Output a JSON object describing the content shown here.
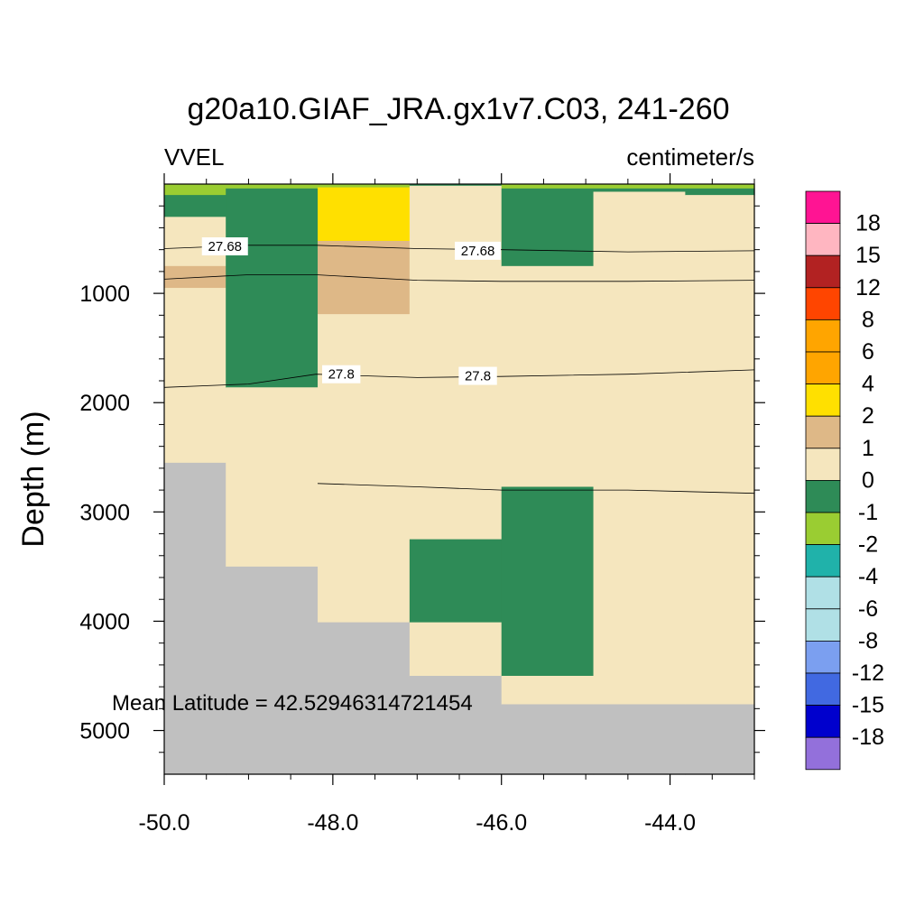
{
  "chart_data": {
    "type": "heatmap",
    "title": "g20a10.GIAF_JRA.gx1v7.C03, 241-260",
    "left_label": "VVEL",
    "right_label": "centimeter/s",
    "ylabel": "Depth (m)",
    "xlabel": "",
    "xlim": [
      -50.0,
      -43.0
    ],
    "ylim": [
      5400,
      0
    ],
    "y_reversed": true,
    "x_ticks": [
      -50.0,
      -48.0,
      -46.0,
      -44.0
    ],
    "x_tick_labels": [
      "-50.0",
      "-48.0",
      "-46.0",
      "-44.0"
    ],
    "y_ticks": [
      1000,
      2000,
      3000,
      4000,
      5000
    ],
    "y_tick_labels": [
      "1000",
      "2000",
      "3000",
      "4000",
      "5000"
    ],
    "annotation": "Mean Latitude = 42.52946314721454",
    "colorbar": {
      "labels": [
        "18",
        "15",
        "12",
        "8",
        "6",
        "4",
        "2",
        "1",
        "0",
        "-1",
        "-2",
        "-4",
        "-6",
        "-8",
        "-12",
        "-15",
        "-18"
      ],
      "colors": [
        "#ff1493",
        "#ffb6c1",
        "#b22222",
        "#ff4500",
        "#ffa500",
        "#ffa500",
        "#ffe000",
        "#deb887",
        "#f5e6be",
        "#2e8b57",
        "#9acd32",
        "#20b2aa",
        "#b0e0e6",
        "#b0e0e6",
        "#7b9ff0",
        "#4169e1",
        "#0000cd",
        "#9370db"
      ]
    },
    "missing_color": "#c0c0c0",
    "cells": [
      {
        "x": [
          -50.0,
          -49.27
        ],
        "y": [
          0,
          100
        ],
        "c": "#9acd32"
      },
      {
        "x": [
          -50.0,
          -49.27
        ],
        "y": [
          100,
          300
        ],
        "c": "#2e8b57"
      },
      {
        "x": [
          -50.0,
          -49.27
        ],
        "y": [
          300,
          750
        ],
        "c": "#f5e6be"
      },
      {
        "x": [
          -50.0,
          -49.27
        ],
        "y": [
          750,
          950
        ],
        "c": "#deb887"
      },
      {
        "x": [
          -50.0,
          -49.27
        ],
        "y": [
          950,
          2550
        ],
        "c": "#f5e6be"
      },
      {
        "x": [
          -50.0,
          -49.27
        ],
        "y": [
          2550,
          5400
        ],
        "c": "#c0c0c0"
      },
      {
        "x": [
          -49.27,
          -48.18
        ],
        "y": [
          0,
          40
        ],
        "c": "#9acd32"
      },
      {
        "x": [
          -49.27,
          -48.18
        ],
        "y": [
          40,
          1860
        ],
        "c": "#2e8b57"
      },
      {
        "x": [
          -49.27,
          -48.18
        ],
        "y": [
          1860,
          3500
        ],
        "c": "#f5e6be"
      },
      {
        "x": [
          -49.27,
          -48.18
        ],
        "y": [
          3500,
          5400
        ],
        "c": "#c0c0c0"
      },
      {
        "x": [
          -48.18,
          -47.09
        ],
        "y": [
          0,
          30
        ],
        "c": "#9acd32"
      },
      {
        "x": [
          -48.18,
          -47.09
        ],
        "y": [
          30,
          520
        ],
        "c": "#ffe000"
      },
      {
        "x": [
          -48.18,
          -47.09
        ],
        "y": [
          520,
          1190
        ],
        "c": "#deb887"
      },
      {
        "x": [
          -48.18,
          -47.09
        ],
        "y": [
          1190,
          4010
        ],
        "c": "#f5e6be"
      },
      {
        "x": [
          -48.18,
          -47.09
        ],
        "y": [
          4010,
          5400
        ],
        "c": "#c0c0c0"
      },
      {
        "x": [
          -47.09,
          -46.0
        ],
        "y": [
          0,
          15
        ],
        "c": "#2e8b57"
      },
      {
        "x": [
          -47.09,
          -46.0
        ],
        "y": [
          15,
          3250
        ],
        "c": "#f5e6be"
      },
      {
        "x": [
          -47.09,
          -46.0
        ],
        "y": [
          3250,
          4010
        ],
        "c": "#2e8b57"
      },
      {
        "x": [
          -47.09,
          -46.0
        ],
        "y": [
          4010,
          4500
        ],
        "c": "#f5e6be"
      },
      {
        "x": [
          -47.09,
          -46.0
        ],
        "y": [
          4500,
          5400
        ],
        "c": "#c0c0c0"
      },
      {
        "x": [
          -46.0,
          -44.91
        ],
        "y": [
          0,
          40
        ],
        "c": "#9acd32"
      },
      {
        "x": [
          -46.0,
          -44.91
        ],
        "y": [
          40,
          750
        ],
        "c": "#2e8b57"
      },
      {
        "x": [
          -46.0,
          -44.91
        ],
        "y": [
          750,
          2770
        ],
        "c": "#f5e6be"
      },
      {
        "x": [
          -46.0,
          -44.91
        ],
        "y": [
          2770,
          4500
        ],
        "c": "#2e8b57"
      },
      {
        "x": [
          -46.0,
          -44.91
        ],
        "y": [
          4500,
          4760
        ],
        "c": "#f5e6be"
      },
      {
        "x": [
          -46.0,
          -44.91
        ],
        "y": [
          4760,
          5400
        ],
        "c": "#c0c0c0"
      },
      {
        "x": [
          -44.91,
          -43.82
        ],
        "y": [
          0,
          40
        ],
        "c": "#9acd32"
      },
      {
        "x": [
          -44.91,
          -43.82
        ],
        "y": [
          40,
          70
        ],
        "c": "#2e8b57"
      },
      {
        "x": [
          -44.91,
          -43.82
        ],
        "y": [
          70,
          4760
        ],
        "c": "#f5e6be"
      },
      {
        "x": [
          -44.91,
          -43.82
        ],
        "y": [
          4760,
          5400
        ],
        "c": "#c0c0c0"
      },
      {
        "x": [
          -43.82,
          -43.0
        ],
        "y": [
          0,
          40
        ],
        "c": "#9acd32"
      },
      {
        "x": [
          -43.82,
          -43.0
        ],
        "y": [
          40,
          100
        ],
        "c": "#2e8b57"
      },
      {
        "x": [
          -43.82,
          -43.0
        ],
        "y": [
          100,
          4760
        ],
        "c": "#f5e6be"
      },
      {
        "x": [
          -43.82,
          -43.0
        ],
        "y": [
          4760,
          5400
        ],
        "c": "#c0c0c0"
      }
    ],
    "contours": [
      {
        "level": "27.68",
        "points": [
          [
            -50.0,
            590
          ],
          [
            -49.0,
            560
          ],
          [
            -48.2,
            560
          ],
          [
            -47.0,
            590
          ],
          [
            -46.0,
            600
          ],
          [
            -44.5,
            620
          ],
          [
            -43.0,
            610
          ]
        ],
        "labels": [
          {
            "x": -49.28,
            "y": 570
          },
          {
            "x": -46.28,
            "y": 610
          }
        ]
      },
      {
        "level": "",
        "points": [
          [
            -50.0,
            870
          ],
          [
            -49.0,
            830
          ],
          [
            -48.2,
            830
          ],
          [
            -47.0,
            880
          ],
          [
            -46.0,
            890
          ],
          [
            -44.5,
            890
          ],
          [
            -43.0,
            880
          ]
        ],
        "labels": []
      },
      {
        "level": "27.8",
        "points": [
          [
            -50.0,
            1860
          ],
          [
            -49.0,
            1830
          ],
          [
            -48.2,
            1740
          ],
          [
            -47.0,
            1770
          ],
          [
            -46.0,
            1760
          ],
          [
            -44.5,
            1740
          ],
          [
            -43.0,
            1700
          ]
        ],
        "labels": [
          {
            "x": -47.9,
            "y": 1740
          },
          {
            "x": -46.28,
            "y": 1755
          }
        ]
      },
      {
        "level": "",
        "points": [
          [
            -48.18,
            2740
          ],
          [
            -47.0,
            2770
          ],
          [
            -46.0,
            2800
          ],
          [
            -44.5,
            2800
          ],
          [
            -43.0,
            2830
          ]
        ],
        "labels": []
      }
    ]
  }
}
